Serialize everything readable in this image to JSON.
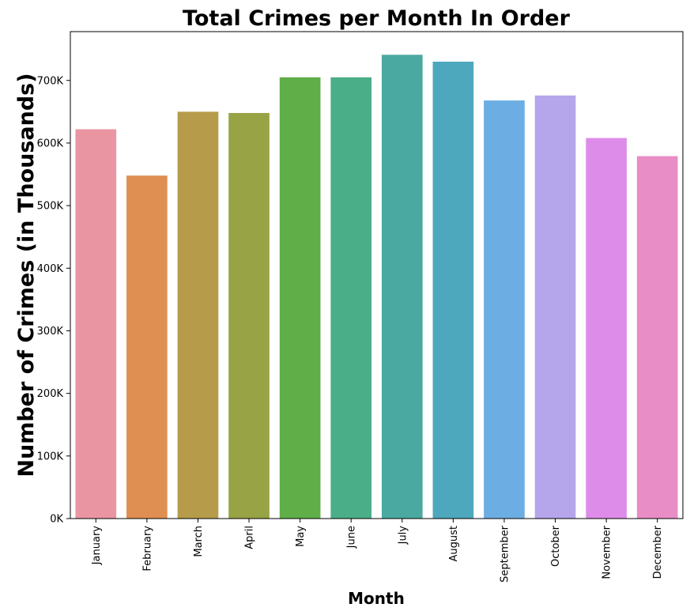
{
  "chart_data": {
    "type": "bar",
    "title": "Total Crimes per Month In Order",
    "xlabel": "Month",
    "ylabel": "Number of Crimes (in Thousands)",
    "categories": [
      "January",
      "February",
      "March",
      "April",
      "May",
      "June",
      "July",
      "August",
      "September",
      "October",
      "November",
      "December"
    ],
    "values": [
      622000,
      548000,
      650000,
      648000,
      705000,
      705000,
      741000,
      730000,
      668000,
      676000,
      608000,
      579000
    ],
    "colors": [
      "#ea96a2",
      "#e08f52",
      "#b69c4a",
      "#98a345",
      "#5fae47",
      "#4aae88",
      "#4aa9a0",
      "#4ea8bd",
      "#6caee3",
      "#b5a6ec",
      "#de8cea",
      "#e98dc6"
    ],
    "yticks": [
      0,
      100000,
      200000,
      300000,
      400000,
      500000,
      600000,
      700000
    ],
    "ytick_labels": [
      "0K",
      "100K",
      "200K",
      "300K",
      "400K",
      "500K",
      "600K",
      "700K"
    ],
    "ylim": [
      0,
      778000
    ],
    "grid": false,
    "legend": "none"
  }
}
